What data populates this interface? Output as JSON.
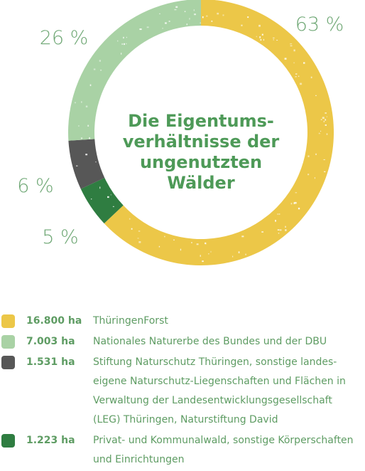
{
  "chart_data": {
    "type": "pie",
    "title_lines": [
      "Die Eigentums-",
      "verhältnisse der",
      "ungenutzten",
      "Wälder"
    ],
    "slices": [
      {
        "percent_label": "63 %",
        "value": 63,
        "color": "#ecc748"
      },
      {
        "percent_label": "5 %",
        "value": 5,
        "color": "#2f7d41"
      },
      {
        "percent_label": "6 %",
        "value": 6,
        "color": "#575757"
      },
      {
        "percent_label": "26 %",
        "value": 26,
        "color": "#a9d2a5"
      }
    ]
  },
  "legend": [
    {
      "swatch_color": "#ecc748",
      "amount": "16.800 ha",
      "lines": [
        "ThüringenForst"
      ]
    },
    {
      "swatch_color": "#a9d2a5",
      "amount": "7.003 ha",
      "lines": [
        "Nationales Naturerbe des Bundes und der DBU"
      ]
    },
    {
      "swatch_color": "#575757",
      "amount": "1.531 ha",
      "lines": [
        "Stiftung Naturschutz Thüringen, sonstige landes-",
        "eigene Naturschutz-Liegenschaften und Flächen in",
        "Verwaltung der Landesentwicklungsgesellschaft",
        "(LEG) Thüringen, Naturstiftung David"
      ]
    },
    {
      "swatch_color": "#2f7d41",
      "amount": "1.223 ha",
      "lines": [
        "Privat- und Kommunalwald, sonstige Körperschaften",
        "und Einrichtungen"
      ]
    }
  ]
}
